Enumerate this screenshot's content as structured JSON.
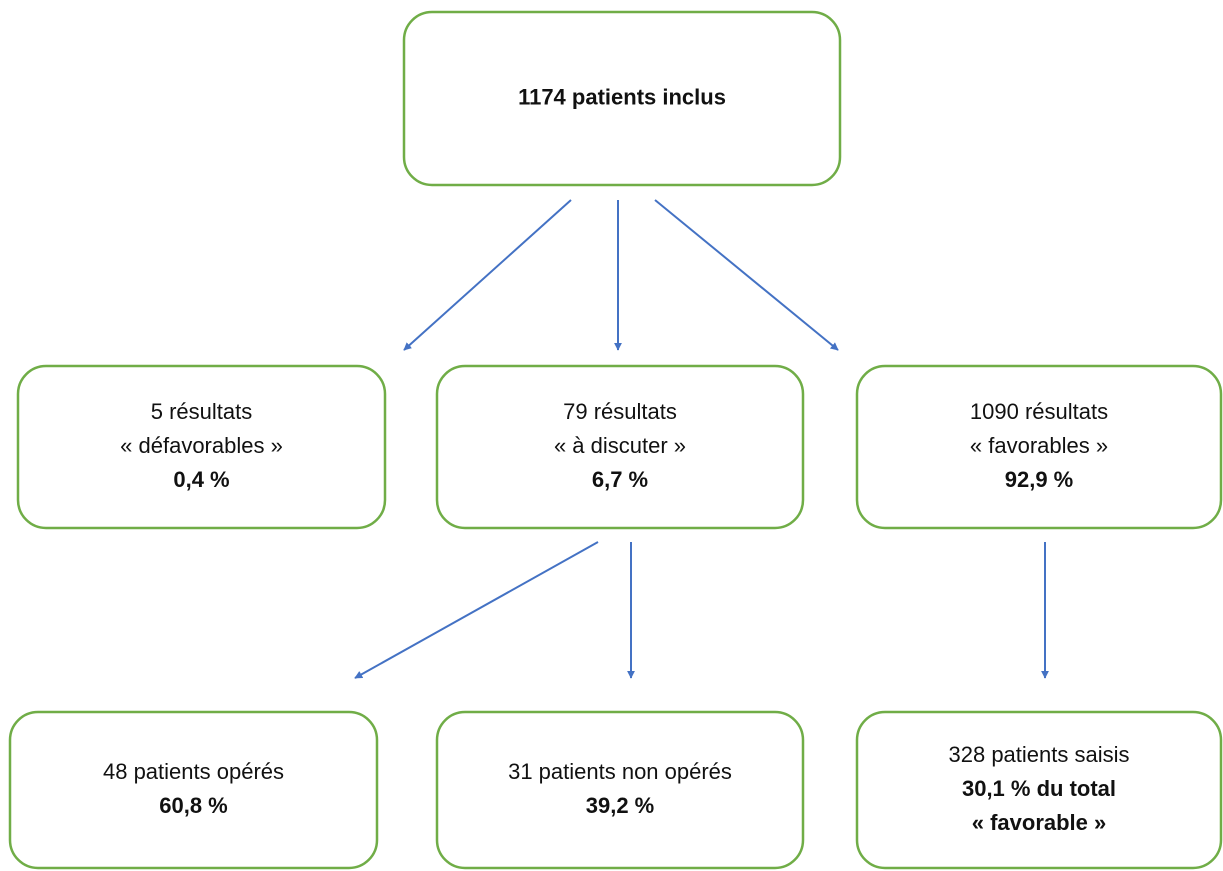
{
  "nodes": [
    {
      "bold": [
        "1174 patients inclus"
      ]
    },
    {
      "label": [
        "5 résultats",
        "« défavorables »"
      ],
      "bold": [
        "0,4 %"
      ]
    },
    {
      "label": [
        "79 résultats",
        "« à discuter »"
      ],
      "bold": [
        "6,7 %"
      ]
    },
    {
      "label": [
        "1090 résultats",
        "« favorables »"
      ],
      "bold": [
        "92,9 %"
      ]
    },
    {
      "label": [
        "48 patients opérés"
      ],
      "bold": [
        "60,8 %"
      ]
    },
    {
      "label": [
        "31 patients non opérés"
      ],
      "bold": [
        "39,2 %"
      ]
    },
    {
      "label": [
        "328 patients saisis"
      ],
      "bold": [
        "30,1 % du total",
        "« favorable »"
      ]
    }
  ]
}
